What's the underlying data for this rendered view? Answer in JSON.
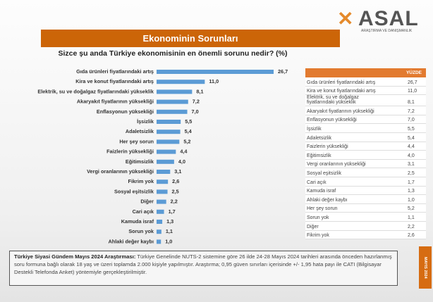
{
  "logo": {
    "text": "ASAL",
    "subtitle": "ARAŞTIRMA VE DANIŞMANLIK"
  },
  "title": "Ekonominin Sorunları",
  "chart_data": {
    "type": "bar",
    "orientation": "horizontal",
    "title": "Sizce şu anda Türkiye ekonomisinin en önemli sorunu nedir? (%)",
    "categories": [
      "Gıda ürünleri fiyatlarındaki artış",
      "Kira ve konut fiyatlarındaki artış",
      "Elektrik, su ve doğalgaz fiyatlarındaki yükseklik",
      "Akaryakıt fiyatlarının yüksekliği",
      "Enflasyonun yüksekliği",
      "İşsizlik",
      "Adaletsizlik",
      "Her şey sorun",
      "Faizlerin yüksekliği",
      "Eğitimsizlik",
      "Vergi oranlarının yüksekliği",
      "Fikrim yok",
      "Sosyal eşitsizlik",
      "Diğer",
      "Cari açık",
      "Kamuda israf",
      "Sorun yok",
      "Ahlaki değer kaybı"
    ],
    "values": [
      26.7,
      11.0,
      8.1,
      7.2,
      7.0,
      5.5,
      5.4,
      5.2,
      4.4,
      4.0,
      3.1,
      2.6,
      2.5,
      2.2,
      1.7,
      1.3,
      1.1,
      1.0
    ],
    "value_labels": [
      "26,7",
      "11,0",
      "8,1",
      "7,2",
      "7,0",
      "5,5",
      "5,4",
      "5,2",
      "4,4",
      "4,0",
      "3,1",
      "2,6",
      "2,5",
      "2,2",
      "1,7",
      "1,3",
      "1,1",
      "1,0"
    ],
    "color": "#5b9bd5",
    "xlim": [
      0,
      30
    ]
  },
  "table": {
    "header": "YÜZDE",
    "rows": [
      [
        "Gıda ürünleri fiyatlarındaki artış",
        "26,7"
      ],
      [
        "Kira ve konut fiyatlarındaki artış",
        "11,0"
      ],
      [
        "Elektrik, su ve doğalgaz fiyatlarındaki yükseklik",
        "8,1"
      ],
      [
        "Akaryakıt fiyatlarının yüksekliği",
        "7,2"
      ],
      [
        "Enflasyonun yüksekliği",
        "7,0"
      ],
      [
        "İşsizlik",
        "5,5"
      ],
      [
        "Adaletsizlik",
        "5,4"
      ],
      [
        "Faizlerin yüksekliği",
        "4,4"
      ],
      [
        "Eğitimsizlik",
        "4,0"
      ],
      [
        "Vergi oranlarının yüksekliği",
        "3,1"
      ],
      [
        "Sosyal eşitsizlik",
        "2,5"
      ],
      [
        "Cari açık",
        "1,7"
      ],
      [
        "Kamuda israf",
        "1,3"
      ],
      [
        "Ahlaki değer kaybı",
        "1,0"
      ],
      [
        "Her şey sorun",
        "5,2"
      ],
      [
        "Sorun yok",
        "1,1"
      ],
      [
        "Diğer",
        "2,2"
      ],
      [
        "Fikrim yok",
        "2,6"
      ]
    ]
  },
  "footer": {
    "bold": "Türkiye Siyasi Gündem Mayıs 2024 Araştırması:",
    "text": " Türkiye Genelinde NUTS-2 sistemine göre 26 ilde 24-28 Mayıs 2024 tarihleri arasında önceden hazırlanmış soru formuna bağlı olarak 18 yaş ve üzeri toplamda 2.000 kişiyle yapılmıştır. Araştırma; 0,95 güven sınırları içerisinde +/- 1,95 hata payı ile CATI (Bilgisayar Destekli Telefonda Anket) yöntemiyle gerçekleştirilmiştir."
  },
  "side_tab": "MAYIS 2024"
}
